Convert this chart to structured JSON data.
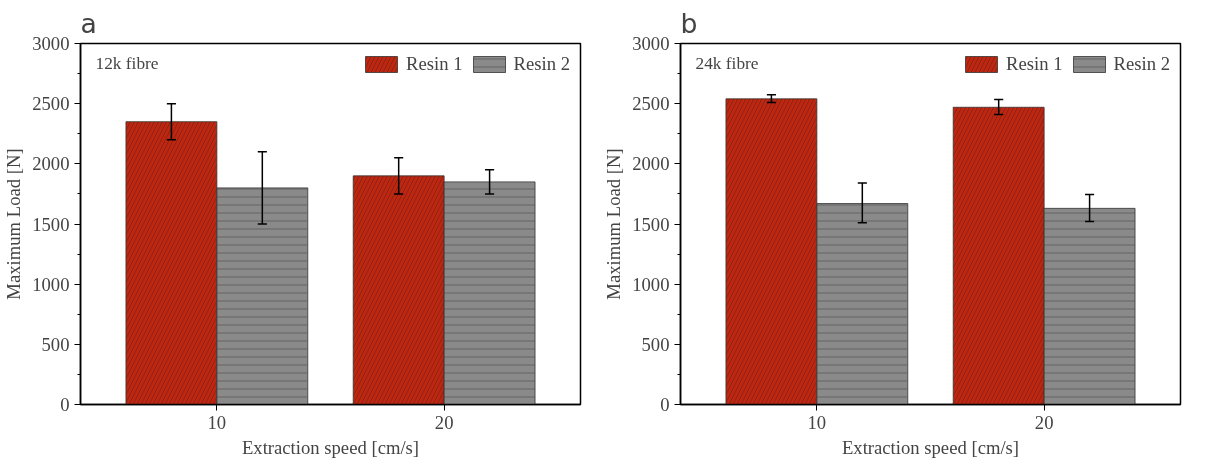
{
  "chart_data": [
    {
      "type": "bar",
      "title": "a",
      "xlabel": "Extraction speed [cm/s]",
      "ylabel": "Maximum Load [N]",
      "annotations": [
        "12k fibre"
      ],
      "categories": [
        "10",
        "20"
      ],
      "ylim": [
        0,
        3000
      ],
      "yticks": [
        0,
        500,
        1000,
        1500,
        2000,
        2500,
        3000
      ],
      "grid": false,
      "legend": "top right",
      "series": [
        {
          "name": "Resin 1",
          "color": "#c0260f",
          "values": [
            2350,
            1900
          ],
          "errors": [
            [
              2200,
              2500
            ],
            [
              1750,
              2050
            ]
          ]
        },
        {
          "name": "Resin 2",
          "color": "#8a8a8a",
          "values": [
            1800,
            1850
          ],
          "errors": [
            [
              1500,
              2100
            ],
            [
              1750,
              1950
            ]
          ]
        }
      ]
    },
    {
      "type": "bar",
      "title": "b",
      "xlabel": "Extraction speed [cm/s]",
      "ylabel": "Maximum Load [N]",
      "annotations": [
        "24k fibre"
      ],
      "categories": [
        "10",
        "20"
      ],
      "ylim": [
        0,
        3000
      ],
      "yticks": [
        0,
        500,
        1000,
        1500,
        2000,
        2500,
        3000
      ],
      "grid": false,
      "legend": "top right",
      "series": [
        {
          "name": "Resin 1",
          "color": "#c0260f",
          "values": [
            2540,
            2470
          ],
          "errors": [
            [
              2510,
              2575
            ],
            [
              2410,
              2535
            ]
          ]
        },
        {
          "name": "Resin 2",
          "color": "#8a8a8a",
          "values": [
            1670,
            1630
          ],
          "errors": [
            [
              1510,
              1840
            ],
            [
              1520,
              1745
            ]
          ]
        }
      ]
    }
  ]
}
